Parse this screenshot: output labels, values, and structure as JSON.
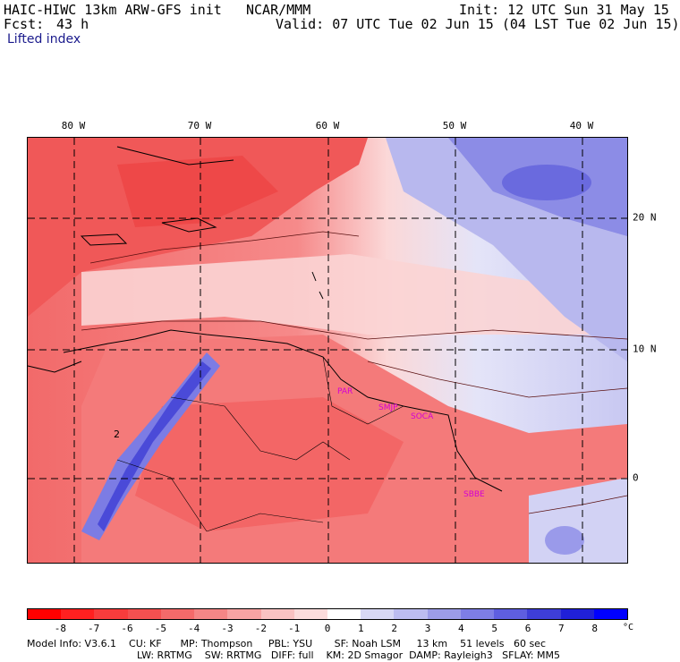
{
  "header": {
    "model": "HAIC-HIWC 13km ARW-GFS init",
    "org": "NCAR/MMM",
    "init": "Init: 12 UTC Sun 31 May 15",
    "fcst_label": "Fcst:",
    "fcst_hours": "43 h",
    "valid": "Valid: 07 UTC Tue 02 Jun 15 (04 LST Tue 02 Jun 15)",
    "field": "Lifted index"
  },
  "map": {
    "lon_labels": [
      "80 W",
      "70 W",
      "60 W",
      "50 W",
      "40 W"
    ],
    "lat_labels": [
      "20 N",
      "10 N",
      "0"
    ],
    "cities": [
      "PAR",
      "SMJP",
      "SOCA",
      "SBBE"
    ],
    "contour_label": "2"
  },
  "colorbar": {
    "ticks": [
      "-8",
      "-7",
      "-6",
      "-5",
      "-4",
      "-3",
      "-2",
      "-1",
      "0",
      "1",
      "2",
      "3",
      "4",
      "5",
      "6",
      "7",
      "8"
    ],
    "unit": "°C",
    "colors": [
      "#ff0000",
      "#ff2020",
      "#f83c3c",
      "#f55050",
      "#f46a6a",
      "#f58686",
      "#f7a3a3",
      "#f9c2c2",
      "#fbdcdc",
      "#ffffff",
      "#d8d8f5",
      "#bcbcf0",
      "#9c9ce8",
      "#7e7ee5",
      "#5e5ee0",
      "#3e3ed8",
      "#2020d8",
      "#0000ff"
    ]
  },
  "footer": {
    "line1": "Model Info: V3.6.1    CU: KF      MP: Thompson     PBL: YSU       SF: Noah LSM     13 km    51 levels   60 sec",
    "line2": "LW: RRTMG    SW: RRTMG   DIFF: full    KM: 2D Smagor  DAMP: Rayleigh3   SFLAY: MM5"
  }
}
